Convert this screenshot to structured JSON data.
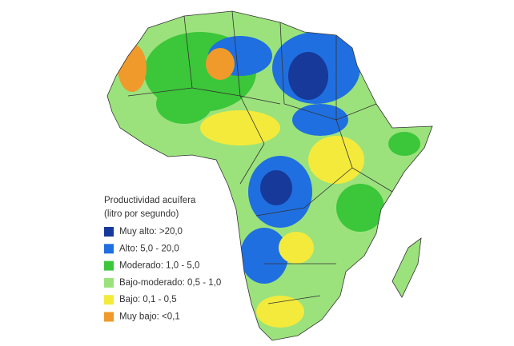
{
  "legend": {
    "title": "Productividad acuífera",
    "subtitle": "(litro por segundo)",
    "items": [
      {
        "label": "Muy alto: >20,0",
        "color": "#17399a"
      },
      {
        "label": "Alto: 5,0 - 20,0",
        "color": "#1f6fe0"
      },
      {
        "label": "Moderado: 1,0 - 5,0",
        "color": "#3cc63a"
      },
      {
        "label": "Bajo-moderado: 0,5 - 1,0",
        "color": "#9be27c"
      },
      {
        "label": "Bajo: 0,1 - 0,5",
        "color": "#f3ea3c"
      },
      {
        "label": "Muy bajo: <0,1",
        "color": "#ef9a2b"
      }
    ]
  }
}
